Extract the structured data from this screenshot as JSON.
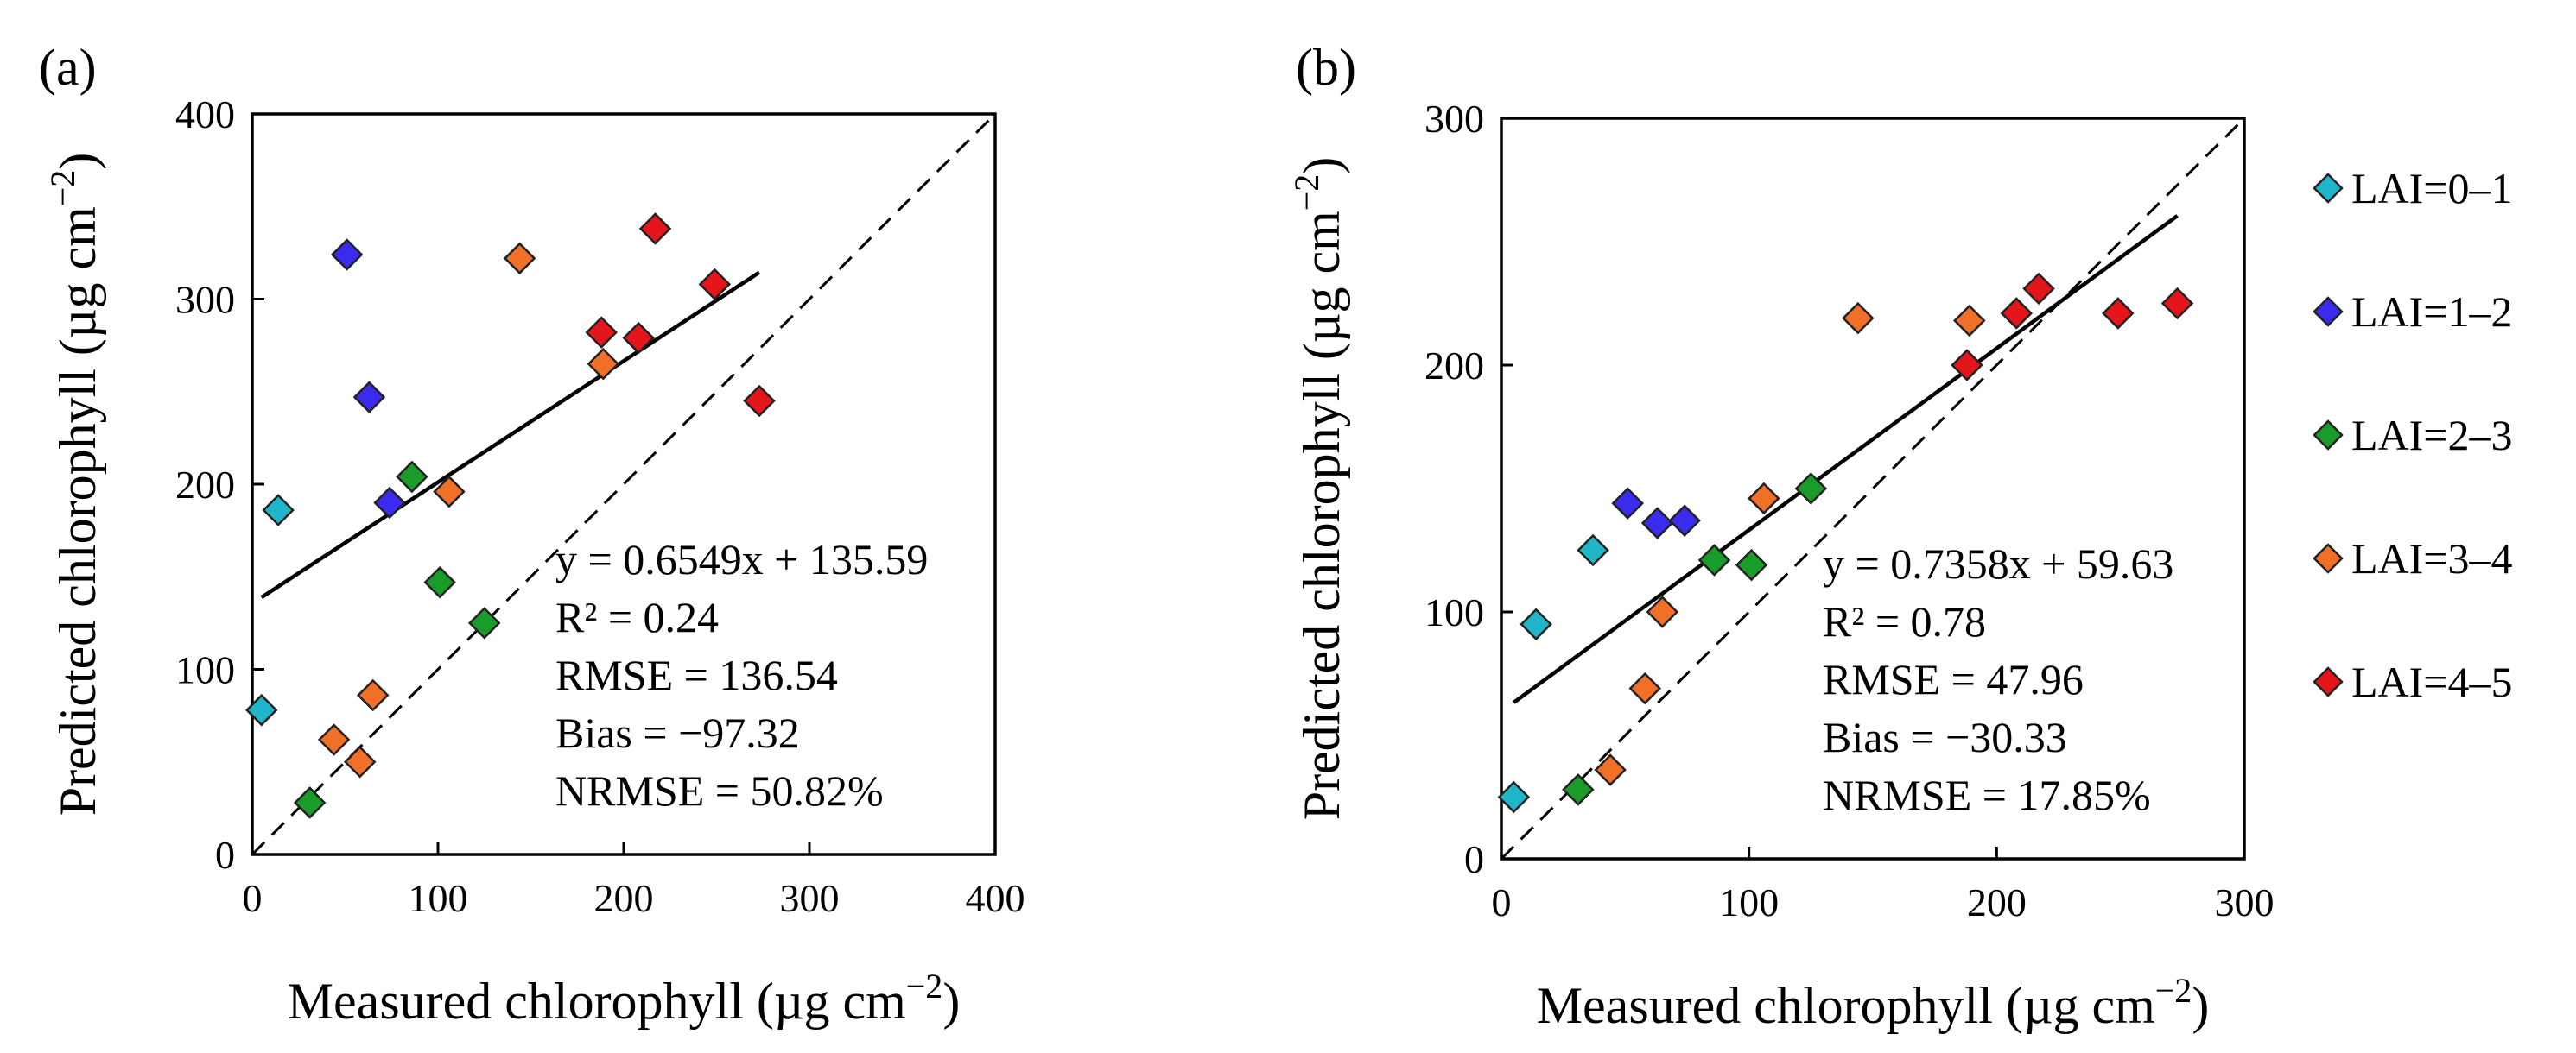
{
  "chart_data": [
    {
      "type": "scatter",
      "panel_label": "(a)",
      "xlabel": "Measured chlorophyll (µg cm",
      "ylabel": "Predicted chlorophyll (µg cm",
      "unit_exponent": "−2",
      "unit_close": ")",
      "xlim": [
        0,
        400
      ],
      "ylim": [
        0,
        400
      ],
      "xticks": [
        0,
        100,
        200,
        300,
        400
      ],
      "yticks": [
        0,
        100,
        200,
        300,
        400
      ],
      "one_to_one_line": true,
      "fit_line": {
        "slope": 0.6549,
        "intercept": 135.59,
        "x_range": [
          5,
          273
        ]
      },
      "stats": [
        "y = 0.6549x + 135.59",
        "R² = 0.24",
        "RMSE = 136.54",
        "Bias = −97.32",
        "NRMSE = 50.82%"
      ],
      "series": [
        {
          "name": "LAI=0–1",
          "color": "#1fb6c9",
          "points": [
            [
              5,
              78
            ],
            [
              14,
              186
            ]
          ]
        },
        {
          "name": "LAI=1–2",
          "color": "#3b2bef",
          "points": [
            [
              51,
              324
            ],
            [
              63,
              247
            ],
            [
              74,
              190
            ]
          ]
        },
        {
          "name": "LAI=2–3",
          "color": "#1a9c2a",
          "points": [
            [
              31,
              28
            ],
            [
              86,
              204
            ],
            [
              101,
              147
            ],
            [
              125,
              125
            ]
          ]
        },
        {
          "name": "LAI=3–4",
          "color": "#f07028",
          "points": [
            [
              44,
              62
            ],
            [
              58,
              50
            ],
            [
              65,
              86
            ],
            [
              106,
              196
            ],
            [
              144,
              322
            ],
            [
              189,
              265
            ]
          ]
        },
        {
          "name": "LAI=4–5",
          "color": "#e4161b",
          "points": [
            [
              188,
              282
            ],
            [
              208,
              279
            ],
            [
              217,
              338
            ],
            [
              249,
              308
            ],
            [
              273,
              245
            ]
          ]
        }
      ]
    },
    {
      "type": "scatter",
      "panel_label": "(b)",
      "xlabel": "Measured chlorophyll (µg cm",
      "ylabel": "Predicted chlorophyll (µg cm",
      "unit_exponent": "−2",
      "unit_close": ")",
      "xlim": [
        0,
        300
      ],
      "ylim": [
        0,
        300
      ],
      "xticks": [
        0,
        100,
        200,
        300
      ],
      "yticks": [
        0,
        100,
        200,
        300
      ],
      "one_to_one_line": true,
      "fit_line": {
        "slope": 0.7358,
        "intercept": 59.63,
        "x_range": [
          5,
          273
        ]
      },
      "stats": [
        "y = 0.7358x + 59.63",
        "R² = 0.78",
        "RMSE = 47.96",
        "Bias = −30.33",
        "NRMSE = 17.85%"
      ],
      "series": [
        {
          "name": "LAI=0–1",
          "color": "#1fb6c9",
          "points": [
            [
              5,
              25
            ],
            [
              14,
              95
            ],
            [
              37,
              125
            ]
          ]
        },
        {
          "name": "LAI=1–2",
          "color": "#3b2bef",
          "points": [
            [
              51,
              144
            ],
            [
              63,
              136
            ],
            [
              74,
              137
            ]
          ]
        },
        {
          "name": "LAI=2–3",
          "color": "#1a9c2a",
          "points": [
            [
              31,
              28
            ],
            [
              86,
              121
            ],
            [
              101,
              119
            ],
            [
              125,
              150
            ]
          ]
        },
        {
          "name": "LAI=3–4",
          "color": "#f07028",
          "points": [
            [
              44,
              36
            ],
            [
              58,
              69
            ],
            [
              65,
              100
            ],
            [
              106,
              146
            ],
            [
              144,
              219
            ],
            [
              189,
              218
            ]
          ]
        },
        {
          "name": "LAI=4–5",
          "color": "#e4161b",
          "points": [
            [
              188,
              200
            ],
            [
              208,
              221
            ],
            [
              217,
              231
            ],
            [
              249,
              221
            ],
            [
              273,
              225
            ]
          ]
        }
      ]
    }
  ],
  "legend": [
    {
      "label": "LAI=0–1",
      "color": "#1fb6c9"
    },
    {
      "label": "LAI=1–2",
      "color": "#3b2bef"
    },
    {
      "label": "LAI=2–3",
      "color": "#1a9c2a"
    },
    {
      "label": "LAI=3–4",
      "color": "#f07028"
    },
    {
      "label": "LAI=4–5",
      "color": "#e4161b"
    }
  ]
}
